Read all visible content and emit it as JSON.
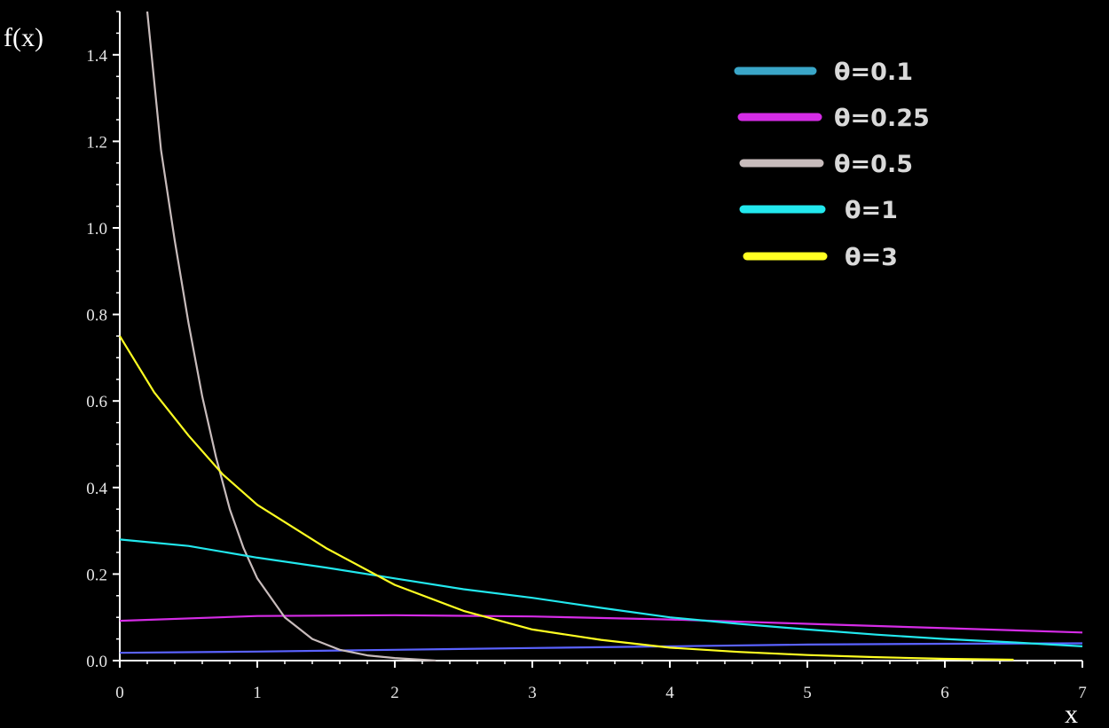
{
  "chart_data": {
    "type": "line",
    "title": "",
    "xlabel": "x",
    "ylabel": "f(x)",
    "xlim": [
      0,
      7
    ],
    "ylim": [
      0,
      1.5
    ],
    "x_ticks": [
      "0",
      "1",
      "2",
      "3",
      "4",
      "5",
      "6",
      "7"
    ],
    "y_ticks": [
      "0.0",
      "0.2",
      "0.4",
      "0.6",
      "0.8",
      "1.0",
      "1.2",
      "1.4"
    ],
    "grid": false,
    "legend_position": "top-right",
    "series": [
      {
        "name": "θ=0.1",
        "legend_color": "#3aa6c8",
        "line_color": "#5a62ff",
        "x": [
          0,
          1,
          2,
          3,
          4,
          5,
          6,
          7
        ],
        "y": [
          0.018,
          0.021,
          0.025,
          0.029,
          0.033,
          0.037,
          0.039,
          0.04
        ]
      },
      {
        "name": "θ=0.25",
        "legend_color": "#d52ce6",
        "line_color": "#d52ce6",
        "x": [
          0,
          1,
          2,
          3,
          4,
          5,
          6,
          7
        ],
        "y": [
          0.092,
          0.103,
          0.105,
          0.102,
          0.095,
          0.085,
          0.075,
          0.065
        ]
      },
      {
        "name": "θ=0.5",
        "legend_color": "#c8bcbc",
        "line_color": "#c8bcbc",
        "x": [
          0.2,
          0.3,
          0.4,
          0.5,
          0.6,
          0.7,
          0.8,
          0.9,
          1.0,
          1.2,
          1.4,
          1.6,
          1.8,
          2.0,
          2.3
        ],
        "y": [
          1.5,
          1.18,
          0.97,
          0.78,
          0.61,
          0.47,
          0.35,
          0.26,
          0.19,
          0.1,
          0.05,
          0.025,
          0.012,
          0.006,
          0.0
        ]
      },
      {
        "name": "θ=1",
        "legend_color": "#22e8ee",
        "line_color": "#22e8ee",
        "x": [
          0,
          0.5,
          1,
          1.5,
          2,
          2.5,
          3,
          3.5,
          4,
          4.5,
          5,
          5.5,
          6,
          6.5,
          7
        ],
        "y": [
          0.28,
          0.265,
          0.238,
          0.215,
          0.19,
          0.165,
          0.145,
          0.122,
          0.1,
          0.085,
          0.072,
          0.06,
          0.05,
          0.042,
          0.033
        ]
      },
      {
        "name": "θ=3",
        "legend_color": "#ffff22",
        "line_color": "#ffff22",
        "x": [
          0,
          0.25,
          0.5,
          0.75,
          1,
          1.5,
          2,
          2.5,
          3,
          3.5,
          4,
          4.5,
          5,
          5.5,
          6,
          6.5
        ],
        "y": [
          0.75,
          0.62,
          0.52,
          0.43,
          0.36,
          0.26,
          0.175,
          0.115,
          0.072,
          0.048,
          0.03,
          0.02,
          0.013,
          0.008,
          0.004,
          0.002
        ]
      }
    ]
  }
}
